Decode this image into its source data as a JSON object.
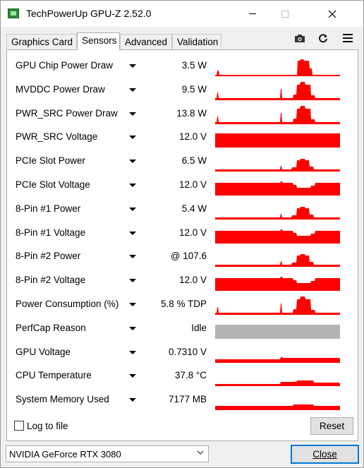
{
  "window": {
    "title": "TechPowerUp GPU-Z 2.52.0"
  },
  "tabs": [
    {
      "label": "Graphics Card",
      "active": false
    },
    {
      "label": "Sensors",
      "active": true
    },
    {
      "label": "Advanced",
      "active": false
    },
    {
      "label": "Validation",
      "active": false
    }
  ],
  "toolbar": {
    "icons": [
      "camera-icon",
      "refresh-icon",
      "hamburger-menu-icon"
    ]
  },
  "colors": {
    "graph_red": "#ff0000",
    "graph_gray": "#b4b4b4",
    "focus_blue": "#0078d7"
  },
  "sensors": [
    {
      "label": "GPU Chip Power Draw",
      "value": "3.5 W",
      "graph": "spike-low",
      "color": "#ff0000"
    },
    {
      "label": "MVDDC Power Draw",
      "value": "9.5 W",
      "graph": "spike-mid",
      "color": "#ff0000"
    },
    {
      "label": "PWR_SRC Power Draw",
      "value": "13.8 W",
      "graph": "spike-mid",
      "color": "#ff0000"
    },
    {
      "label": "PWR_SRC Voltage",
      "value": "12.0 V",
      "graph": "full",
      "color": "#ff0000"
    },
    {
      "label": "PCIe Slot Power",
      "value": "6.5 W",
      "graph": "spike-small",
      "color": "#ff0000"
    },
    {
      "label": "PCIe Slot Voltage",
      "value": "12.0 V",
      "graph": "dip",
      "color": "#ff0000"
    },
    {
      "label": "8-Pin #1 Power",
      "value": "5.4 W",
      "graph": "spike-small",
      "color": "#ff0000"
    },
    {
      "label": "8-Pin #1 Voltage",
      "value": "12.0 V",
      "graph": "dip",
      "color": "#ff0000"
    },
    {
      "label": "8-Pin #2 Power",
      "value": "@ 107.6",
      "graph": "spike-small",
      "color": "#ff0000"
    },
    {
      "label": "8-Pin #2 Voltage",
      "value": "12.0 V",
      "graph": "dip",
      "color": "#ff0000"
    },
    {
      "label": "Power Consumption (%)",
      "value": "5.8 % TDP",
      "graph": "spike-mid",
      "color": "#ff0000"
    },
    {
      "label": "PerfCap Reason",
      "value": "Idle",
      "graph": "full",
      "color": "#b4b4b4"
    },
    {
      "label": "GPU Voltage",
      "value": "0.7310 V",
      "graph": "plateau",
      "color": "#ff0000"
    },
    {
      "label": "CPU Temperature",
      "value": "37.8 °C",
      "graph": "low-bump",
      "color": "#ff0000"
    },
    {
      "label": "System Memory Used",
      "value": "7177 MB",
      "graph": "low-flat",
      "color": "#ff0000"
    }
  ],
  "footer": {
    "log_label": "Log to file",
    "log_checked": false,
    "reset_label": "Reset",
    "gpu_selected": "NVIDIA GeForce RTX 3080",
    "close_label": "Close"
  }
}
